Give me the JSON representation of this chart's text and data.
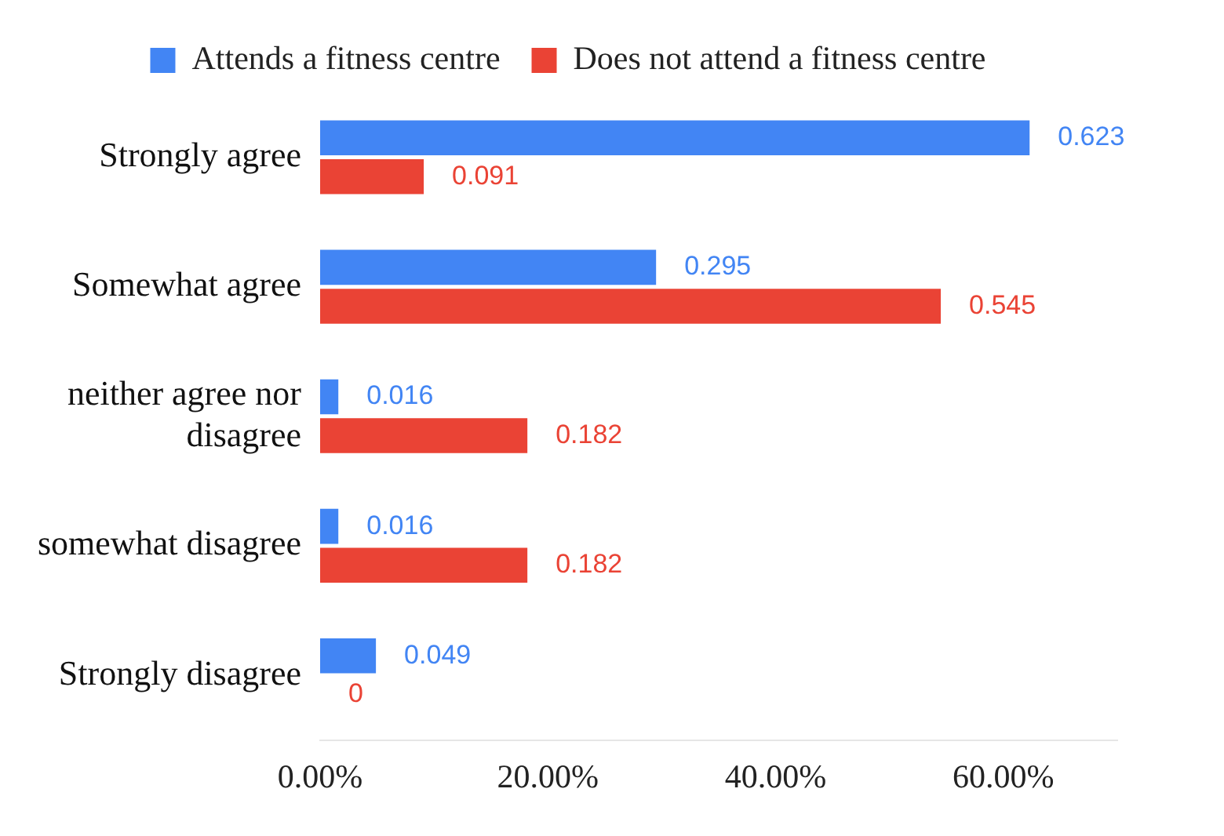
{
  "chart_data": {
    "type": "bar",
    "orientation": "horizontal",
    "categories": [
      "Strongly agree",
      "Somewhat agree",
      "neither agree nor disagree",
      "somewhat disagree",
      "Strongly disagree"
    ],
    "series": [
      {
        "name": "Attends a fitness centre",
        "color": "#4285f4",
        "values": [
          0.623,
          0.295,
          0.016,
          0.016,
          0.049
        ]
      },
      {
        "name": "Does not attend a fitness centre",
        "color": "#ea4335",
        "values": [
          0.091,
          0.545,
          0.182,
          0.182,
          0
        ]
      }
    ],
    "xlim": [
      0,
      0.7
    ],
    "xticks": [
      {
        "value": 0,
        "label": "0.00%"
      },
      {
        "value": 0.2,
        "label": "20.00%"
      },
      {
        "value": 0.4,
        "label": "40.00%"
      },
      {
        "value": 0.6,
        "label": "60.00%"
      }
    ],
    "grid": false,
    "legend": "top",
    "data_labels": true
  }
}
